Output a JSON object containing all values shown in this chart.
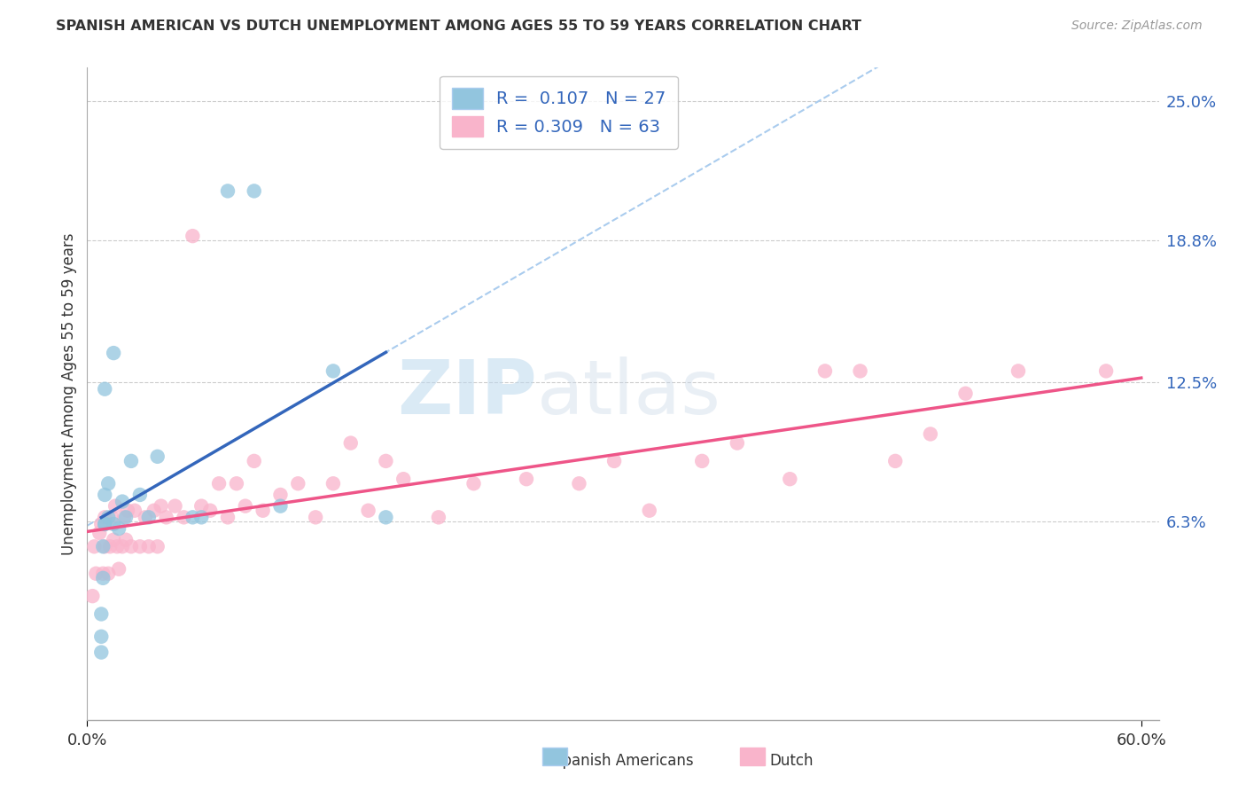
{
  "title": "SPANISH AMERICAN VS DUTCH UNEMPLOYMENT AMONG AGES 55 TO 59 YEARS CORRELATION CHART",
  "source": "Source: ZipAtlas.com",
  "ylabel": "Unemployment Among Ages 55 to 59 years",
  "xlim": [
    0.0,
    0.61
  ],
  "ylim": [
    -0.025,
    0.265
  ],
  "xtick_positions": [
    0.0,
    0.6
  ],
  "xtick_labels": [
    "0.0%",
    "60.0%"
  ],
  "ytick_vals": [
    0.063,
    0.125,
    0.188,
    0.25
  ],
  "ytick_labels": [
    "6.3%",
    "12.5%",
    "18.8%",
    "25.0%"
  ],
  "color_blue": "#92C5DE",
  "color_pink": "#F9B4CB",
  "line_blue_solid": "#3366BB",
  "line_pink_solid": "#EE5588",
  "line_blue_dashed": "#AACCEE",
  "background": "#FFFFFF",
  "legend_label1": "R =  0.107   N = 27",
  "legend_label2": "R = 0.309   N = 63",
  "watermark_text": "ZIPatlas",
  "spanish_x": [
    0.008,
    0.008,
    0.008,
    0.009,
    0.009,
    0.01,
    0.01,
    0.01,
    0.01,
    0.012,
    0.012,
    0.015,
    0.015,
    0.018,
    0.02,
    0.022,
    0.025,
    0.03,
    0.035,
    0.04,
    0.06,
    0.065,
    0.08,
    0.095,
    0.11,
    0.14,
    0.17
  ],
  "spanish_y": [
    0.005,
    0.012,
    0.022,
    0.038,
    0.052,
    0.062,
    0.075,
    0.122,
    0.062,
    0.065,
    0.08,
    0.062,
    0.138,
    0.06,
    0.072,
    0.065,
    0.09,
    0.075,
    0.065,
    0.092,
    0.065,
    0.065,
    0.21,
    0.21,
    0.07,
    0.13,
    0.065
  ],
  "dutch_x": [
    0.003,
    0.004,
    0.005,
    0.007,
    0.008,
    0.009,
    0.01,
    0.01,
    0.012,
    0.013,
    0.014,
    0.015,
    0.016,
    0.017,
    0.018,
    0.02,
    0.021,
    0.022,
    0.023,
    0.025,
    0.027,
    0.03,
    0.033,
    0.035,
    0.038,
    0.04,
    0.042,
    0.045,
    0.05,
    0.055,
    0.06,
    0.065,
    0.07,
    0.075,
    0.08,
    0.085,
    0.09,
    0.095,
    0.1,
    0.11,
    0.12,
    0.13,
    0.14,
    0.15,
    0.16,
    0.17,
    0.18,
    0.2,
    0.22,
    0.25,
    0.28,
    0.3,
    0.32,
    0.35,
    0.37,
    0.4,
    0.42,
    0.44,
    0.46,
    0.48,
    0.5,
    0.53,
    0.58
  ],
  "dutch_y": [
    0.03,
    0.052,
    0.04,
    0.058,
    0.062,
    0.04,
    0.052,
    0.065,
    0.04,
    0.052,
    0.065,
    0.055,
    0.07,
    0.052,
    0.042,
    0.052,
    0.065,
    0.055,
    0.068,
    0.052,
    0.068,
    0.052,
    0.065,
    0.052,
    0.068,
    0.052,
    0.07,
    0.065,
    0.07,
    0.065,
    0.19,
    0.07,
    0.068,
    0.08,
    0.065,
    0.08,
    0.07,
    0.09,
    0.068,
    0.075,
    0.08,
    0.065,
    0.08,
    0.098,
    0.068,
    0.09,
    0.082,
    0.065,
    0.08,
    0.082,
    0.08,
    0.09,
    0.068,
    0.09,
    0.098,
    0.082,
    0.13,
    0.13,
    0.09,
    0.102,
    0.12,
    0.13,
    0.13
  ]
}
